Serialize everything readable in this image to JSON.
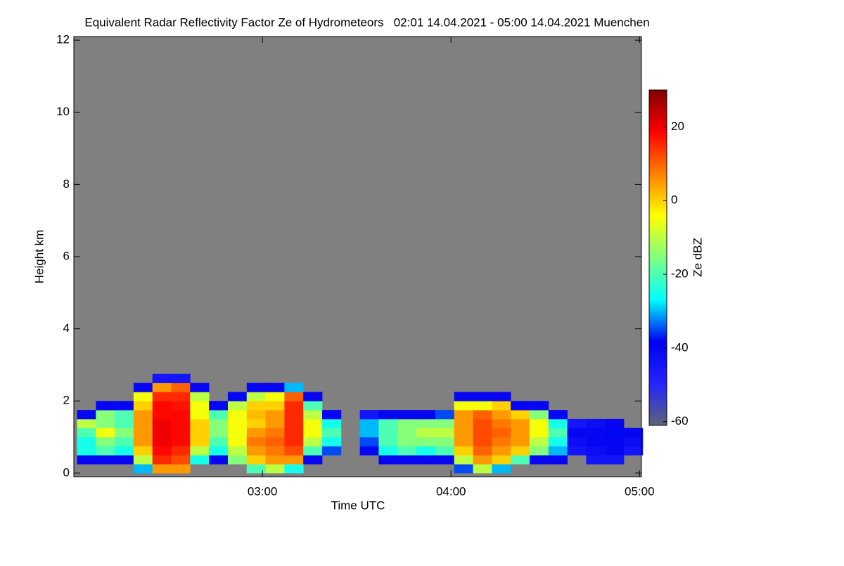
{
  "chart_data": {
    "type": "heatmap",
    "title": "Equivalent Radar Reflectivity Factor Ze of Hydrometeors   02:01 14.04.2021 - 05:00 14.04.2021 Muenchen",
    "xlabel": "Time UTC",
    "ylabel": "Height km",
    "colorbar_label": "Ze dBZ",
    "xlim": [
      2.0,
      5.01
    ],
    "xticks": [
      {
        "value": 3,
        "label": "03:00"
      },
      {
        "value": 4,
        "label": "04:00"
      },
      {
        "value": 5,
        "label": "05:00"
      }
    ],
    "ylim": [
      -0.1,
      12.1
    ],
    "yticks": [
      0,
      2,
      4,
      6,
      8,
      10,
      12
    ],
    "zlim": [
      -61,
      30
    ],
    "zticks": [
      -60,
      -40,
      -20,
      0,
      20
    ],
    "colorscale": [
      "#5e6478",
      "#2424ff",
      "#0000f0",
      "#00ffff",
      "#80ff80",
      "#ffff00",
      "#ff8000",
      "#ff0000",
      "#800000"
    ],
    "background": "#808080",
    "x": [
      2.0667,
      2.1667,
      2.2667,
      2.3667,
      2.4667,
      2.5667,
      2.6667,
      2.7667,
      2.8667,
      2.9667,
      3.0667,
      3.1667,
      3.2667,
      3.3667,
      3.4667,
      3.5667,
      3.6667,
      3.7667,
      3.8667,
      3.9667,
      4.0667,
      4.1667,
      4.2667,
      4.3667,
      4.4667,
      4.5667,
      4.6667,
      4.7667,
      4.8667,
      4.9667
    ],
    "y": [
      0.125,
      0.375,
      0.625,
      0.875,
      1.125,
      1.375,
      1.625,
      1.875,
      2.125,
      2.375,
      2.625
    ],
    "z": [
      [
        null,
        null,
        null,
        -30,
        5,
        5,
        null,
        null,
        null,
        -20,
        -10,
        -25,
        null,
        null,
        null,
        null,
        null,
        null,
        null,
        null,
        -35,
        -10,
        -30,
        null,
        null,
        null,
        null,
        null,
        null,
        null
      ],
      [
        -40,
        -40,
        -40,
        -10,
        15,
        12,
        -25,
        -40,
        -15,
        0,
        5,
        5,
        -40,
        null,
        null,
        null,
        -40,
        -40,
        -40,
        -40,
        -10,
        5,
        0,
        -20,
        -40,
        -40,
        null,
        -45,
        -45,
        null
      ],
      [
        -25,
        -20,
        -25,
        0,
        18,
        15,
        -10,
        -25,
        -10,
        5,
        8,
        12,
        -20,
        -35,
        null,
        -40,
        -25,
        -20,
        -25,
        -20,
        0,
        10,
        5,
        0,
        -15,
        -30,
        -45,
        -42,
        -40,
        -45
      ],
      [
        -25,
        -15,
        -20,
        5,
        20,
        18,
        0,
        -20,
        -5,
        8,
        10,
        15,
        -10,
        -25,
        null,
        -35,
        -20,
        -15,
        -15,
        -15,
        5,
        12,
        8,
        5,
        -10,
        -25,
        -42,
        -40,
        -40,
        -42
      ],
      [
        -20,
        -5,
        -15,
        5,
        20,
        18,
        0,
        -15,
        -5,
        5,
        8,
        15,
        -5,
        -20,
        null,
        -30,
        -20,
        -15,
        -10,
        -10,
        5,
        12,
        10,
        5,
        -5,
        -20,
        -40,
        -40,
        -38,
        -40
      ],
      [
        -10,
        -15,
        -20,
        5,
        20,
        18,
        0,
        -15,
        -5,
        0,
        5,
        15,
        -5,
        -25,
        null,
        -30,
        -20,
        -15,
        -15,
        -15,
        5,
        12,
        8,
        5,
        -5,
        -25,
        -45,
        -42,
        -40,
        null
      ],
      [
        -40,
        -15,
        -20,
        5,
        18,
        18,
        -5,
        -20,
        -5,
        2,
        5,
        15,
        -10,
        -40,
        null,
        -45,
        -40,
        -40,
        -40,
        -35,
        5,
        10,
        5,
        0,
        -15,
        -40,
        null,
        null,
        null,
        null
      ],
      [
        null,
        -40,
        -40,
        0,
        18,
        17,
        -5,
        -40,
        -10,
        0,
        0,
        15,
        -20,
        null,
        null,
        null,
        null,
        null,
        null,
        null,
        -5,
        -5,
        0,
        -40,
        -40,
        null,
        null,
        null,
        null,
        null
      ],
      [
        null,
        null,
        null,
        -5,
        15,
        15,
        -10,
        null,
        -40,
        -10,
        -5,
        10,
        -40,
        null,
        null,
        null,
        null,
        null,
        null,
        null,
        -40,
        -40,
        -40,
        null,
        null,
        null,
        null,
        null,
        null,
        null
      ],
      [
        null,
        null,
        null,
        -40,
        5,
        10,
        -40,
        null,
        null,
        -40,
        -40,
        -30,
        null,
        null,
        null,
        null,
        null,
        null,
        null,
        null,
        null,
        null,
        null,
        null,
        null,
        null,
        null,
        null,
        null,
        null
      ],
      [
        null,
        null,
        null,
        null,
        -45,
        -45,
        null,
        null,
        null,
        null,
        null,
        null,
        null,
        null,
        null,
        null,
        null,
        null,
        null,
        null,
        null,
        null,
        null,
        null,
        null,
        null,
        null,
        null,
        null,
        null
      ]
    ]
  }
}
